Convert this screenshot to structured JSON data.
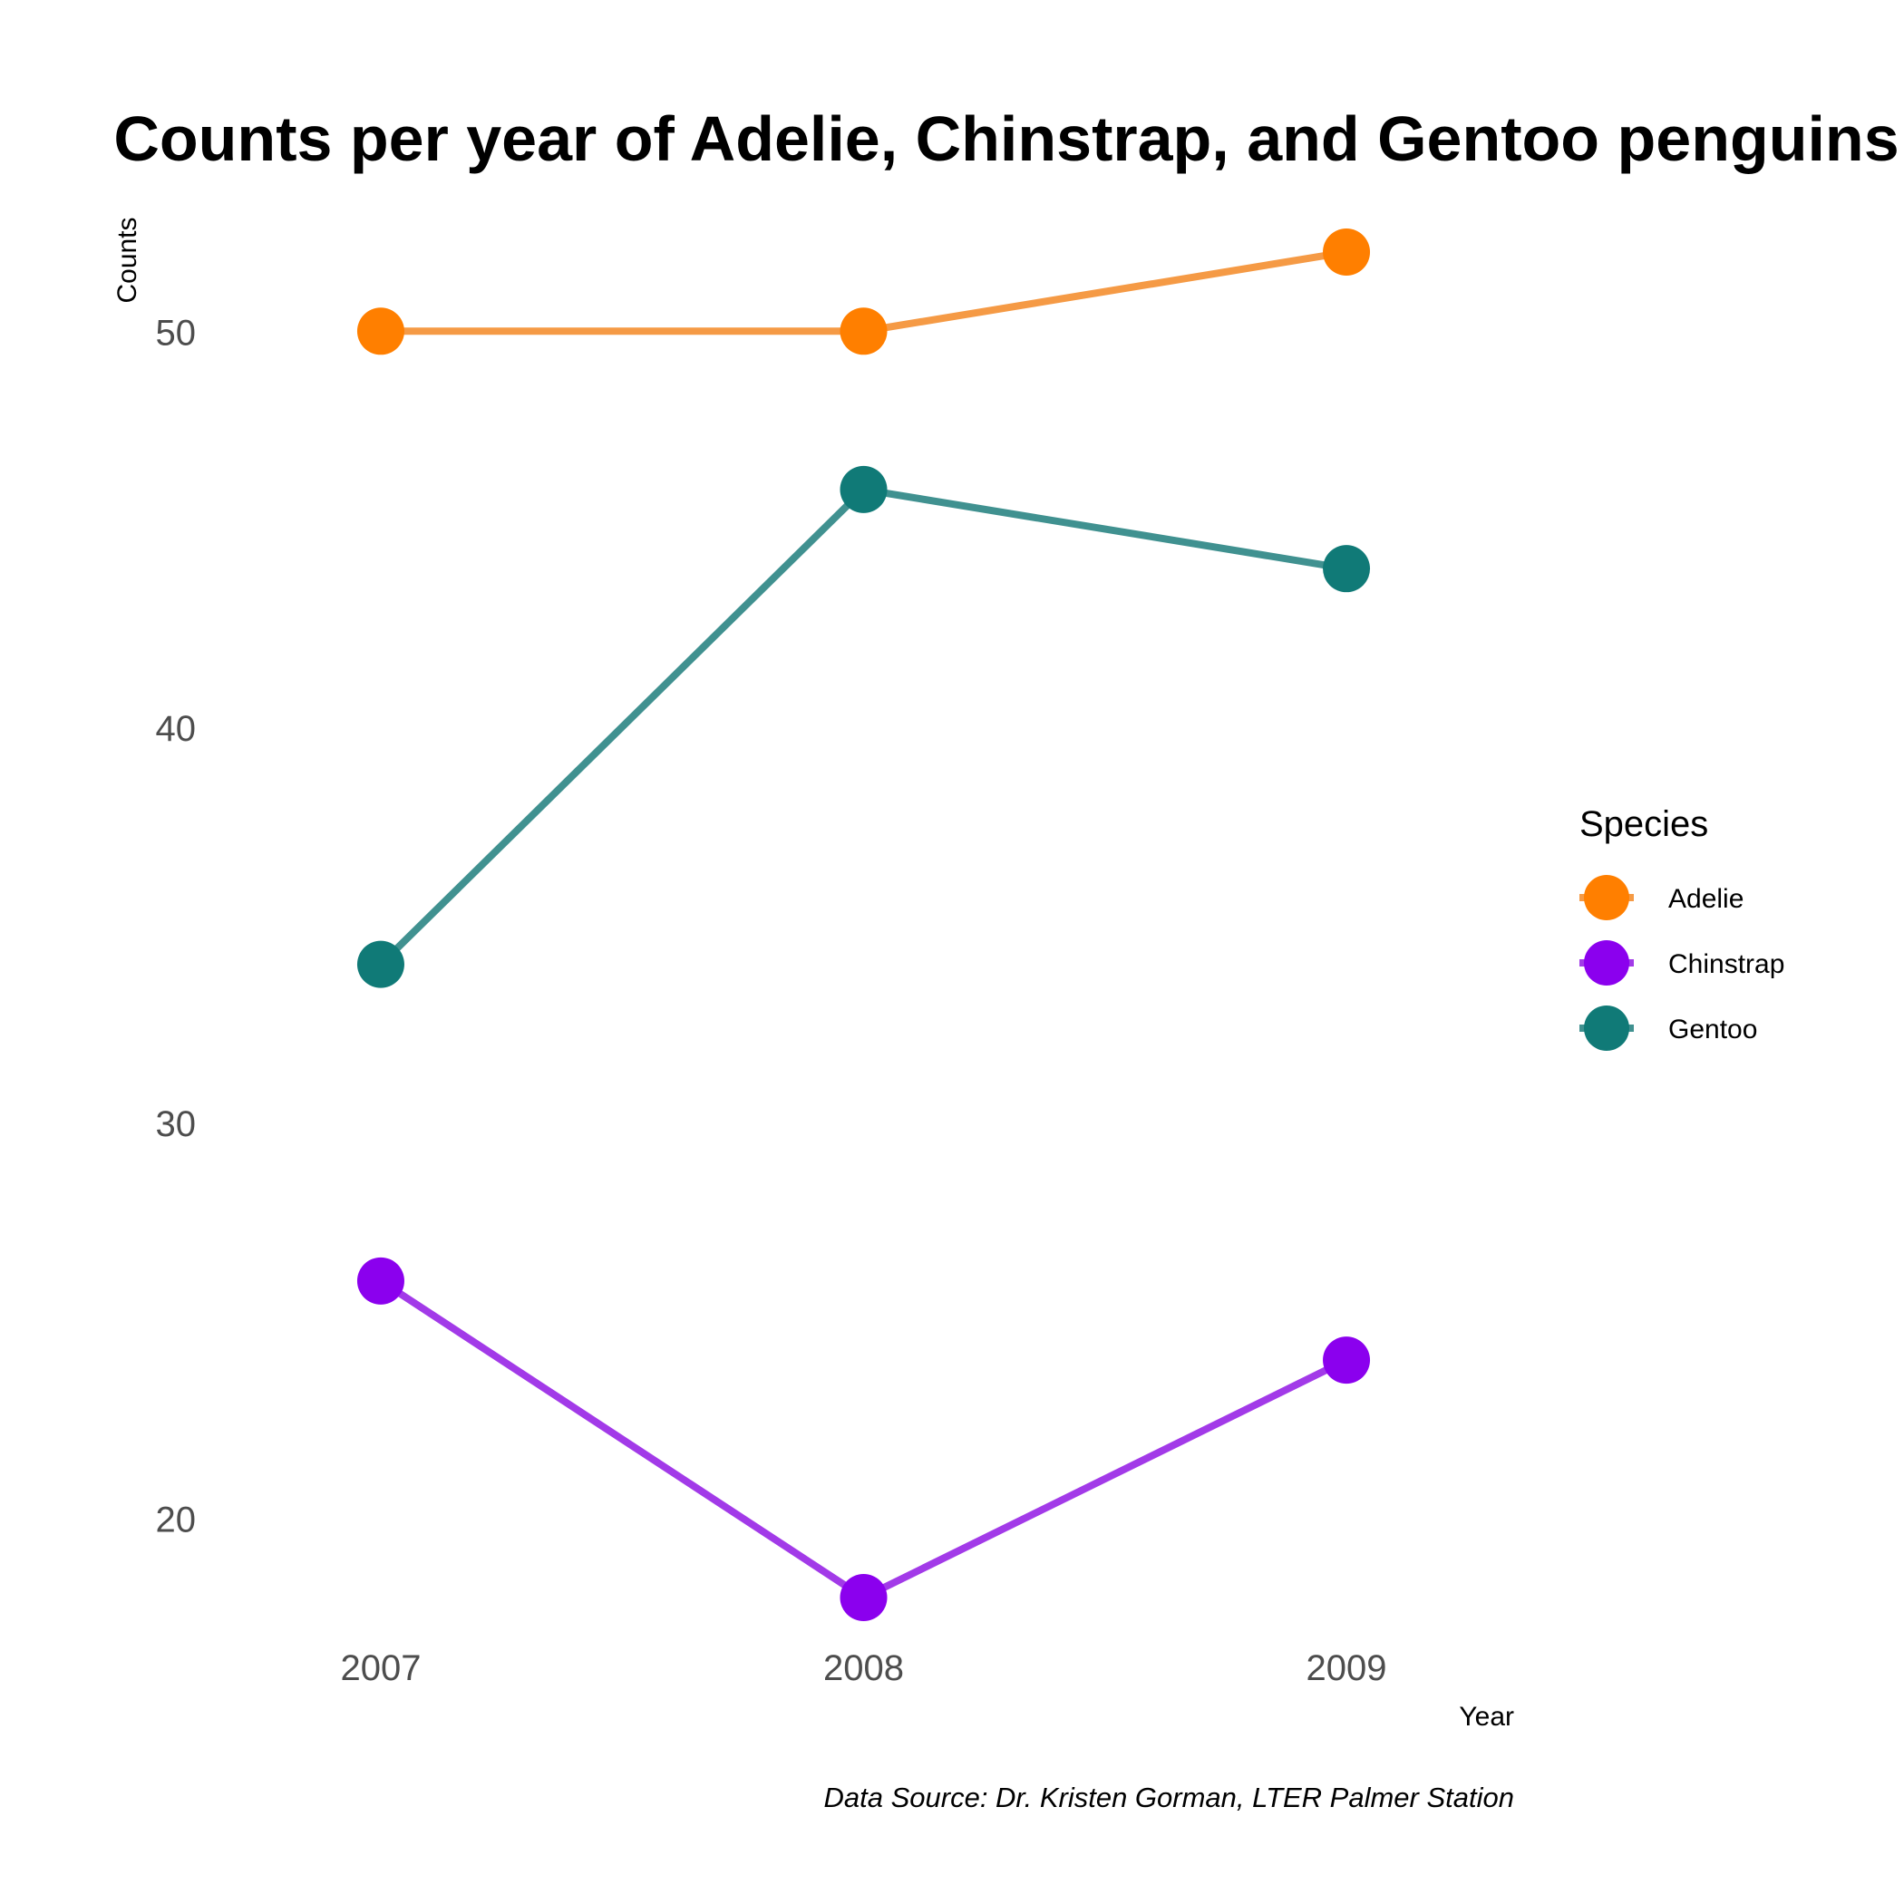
{
  "chart_data": {
    "type": "line",
    "title": "Counts per year of Adelie, Chinstrap, and Gentoo penguins",
    "xlabel": "Year",
    "ylabel": "Counts",
    "caption": "Data Source: Dr. Kristen Gorman, LTER Palmer Station",
    "x": [
      2007,
      2008,
      2009
    ],
    "x_tick_labels": [
      "2007",
      "2008",
      "2009"
    ],
    "y_ticks": [
      20,
      30,
      40,
      50
    ],
    "y_tick_labels": [
      "20",
      "30",
      "40",
      "50"
    ],
    "ylim": [
      16.9,
      53.1
    ],
    "grid": false,
    "legend": {
      "title": "Species",
      "placement": "right"
    },
    "series": [
      {
        "name": "Adelie",
        "values": [
          50,
          50,
          52
        ],
        "color": "#FF7F00",
        "line_color": "#F59A45"
      },
      {
        "name": "Chinstrap",
        "values": [
          26,
          18,
          24
        ],
        "color": "#8B00EE",
        "line_color": "#A23AE8"
      },
      {
        "name": "Gentoo",
        "values": [
          34,
          46,
          44
        ],
        "color": "#107A77",
        "line_color": "#409190"
      }
    ]
  }
}
